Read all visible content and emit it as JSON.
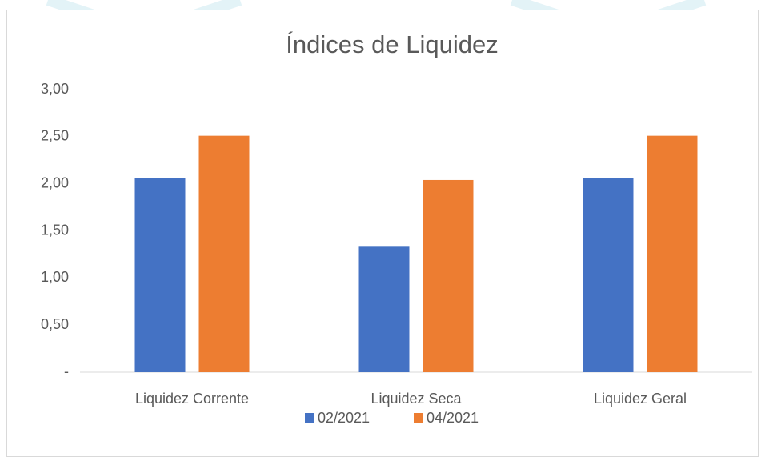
{
  "chart_data": {
    "type": "bar",
    "title": "Índices de Liquidez",
    "categories": [
      "Liquidez Corrente",
      "Liquidez Seca",
      "Liquidez Geral"
    ],
    "series": [
      {
        "name": "02/2021",
        "color": "#4472c4",
        "values": [
          2.06,
          1.34,
          2.06
        ]
      },
      {
        "name": "04/2021",
        "color": "#ed7d31",
        "values": [
          2.51,
          2.04,
          2.51
        ]
      }
    ],
    "ylim": [
      0,
      3
    ],
    "yticks": [
      {
        "value": 0,
        "label": "-"
      },
      {
        "value": 0.5,
        "label": "0,50"
      },
      {
        "value": 1,
        "label": "1,00"
      },
      {
        "value": 1.5,
        "label": "1,50"
      },
      {
        "value": 2,
        "label": "2,00"
      },
      {
        "value": 2.5,
        "label": "2,50"
      },
      {
        "value": 3,
        "label": "3,00"
      }
    ],
    "grid": false,
    "legend": "bottom"
  }
}
